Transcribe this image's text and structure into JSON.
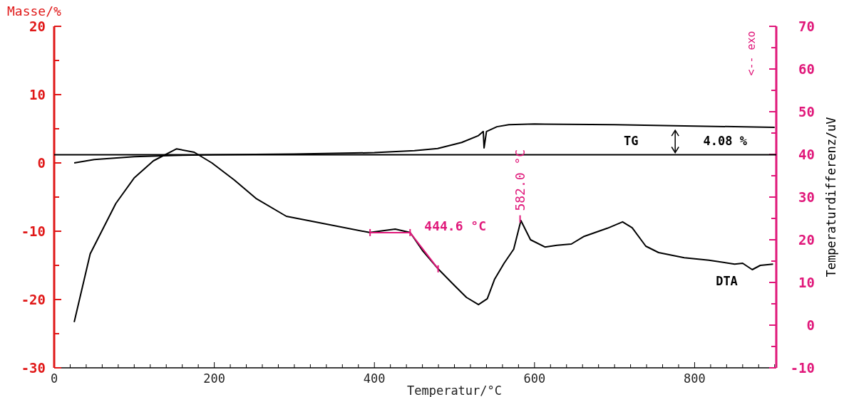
{
  "chart_data": {
    "type": "line",
    "xlabel": "Temperatur/°C",
    "ylabel": "Masse/%",
    "y2label": "Temperaturdifferenz/uV",
    "xlim": [
      0,
      902
    ],
    "ylim": [
      -30,
      20
    ],
    "y2lim": [
      -10,
      70
    ],
    "xticks": [
      0,
      {
        "value": 20,
        "label": null
      },
      {
        "value": 40,
        "label": null
      },
      {
        "value": 60,
        "label": null
      },
      {
        "value": 80,
        "label": null
      },
      {
        "value": 100,
        "label": null
      },
      {
        "value": 120,
        "label": null
      },
      {
        "value": 140,
        "label": null
      },
      {
        "value": 160,
        "label": null
      },
      {
        "value": 180,
        "label": null
      },
      200,
      {
        "value": 220,
        "label": null
      },
      {
        "value": 240,
        "label": null
      },
      {
        "value": 260,
        "label": null
      },
      {
        "value": 280,
        "label": null
      },
      {
        "value": 300,
        "label": null
      },
      {
        "value": 320,
        "label": null
      },
      {
        "value": 340,
        "label": null
      },
      {
        "value": 360,
        "label": null
      },
      {
        "value": 380,
        "label": null
      },
      400,
      {
        "value": 420,
        "label": null
      },
      {
        "value": 440,
        "label": null
      },
      {
        "value": 460,
        "label": null
      },
      {
        "value": 480,
        "label": null
      },
      {
        "value": 500,
        "label": null
      },
      {
        "value": 520,
        "label": null
      },
      {
        "value": 540,
        "label": null
      },
      {
        "value": 560,
        "label": null
      },
      {
        "value": 580,
        "label": null
      },
      600,
      {
        "value": 620,
        "label": null
      },
      {
        "value": 640,
        "label": null
      },
      {
        "value": 660,
        "label": null
      },
      {
        "value": 680,
        "label": null
      },
      {
        "value": 700,
        "label": null
      },
      {
        "value": 720,
        "label": null
      },
      {
        "value": 740,
        "label": null
      },
      {
        "value": 760,
        "label": null
      },
      {
        "value": 780,
        "label": null
      },
      800,
      {
        "value": 820,
        "label": null
      },
      {
        "value": 840,
        "label": null
      },
      {
        "value": 860,
        "label": null
      },
      {
        "value": 880,
        "label": null
      },
      {
        "value": 900,
        "label": null
      }
    ],
    "yticks": [
      -30,
      {
        "value": -25,
        "label": null
      },
      -20,
      {
        "value": -15,
        "label": null
      },
      -10,
      {
        "value": -5,
        "label": null
      },
      0,
      {
        "value": 5,
        "label": null
      },
      10,
      {
        "value": 15,
        "label": null
      },
      20
    ],
    "y2ticks": [
      -10,
      {
        "value": -5,
        "label": null
      },
      0,
      {
        "value": 5,
        "label": null
      },
      10,
      {
        "value": 15,
        "label": null
      },
      20,
      {
        "value": 25,
        "label": null
      },
      30,
      {
        "value": 35,
        "label": null
      },
      40,
      {
        "value": 45,
        "label": null
      },
      50,
      {
        "value": 55,
        "label": null
      },
      60,
      {
        "value": 65,
        "label": null
      },
      70
    ],
    "series": [
      {
        "name": "TG",
        "color": "#000000",
        "x": [
          25,
          50,
          100,
          150,
          200,
          300,
          400,
          450,
          479,
          509,
          530,
          536,
          537,
          540,
          553,
          568,
          600,
          700,
          800,
          900
        ],
        "values": [
          0,
          0.5,
          0.9,
          1.1,
          1.2,
          1.3,
          1.5,
          1.8,
          2.1,
          3.0,
          4.0,
          4.6,
          2.2,
          4.6,
          5.3,
          5.6,
          5.7,
          5.6,
          5.4,
          5.2
        ]
      },
      {
        "name": "DTA",
        "color": "#000000",
        "axis": "y2",
        "x": [
          25,
          45,
          77,
          100,
          124,
          153,
          175,
          197,
          225,
          252,
          290,
          331,
          394,
          426,
          444.6,
          460,
          479,
          500,
          515,
          530,
          541,
          550,
          562,
          574,
          583,
          595,
          613,
          628,
          646,
          662,
          691,
          710,
          722,
          739,
          755,
          787,
          818,
          850,
          860,
          872,
          882,
          898
        ],
        "values": [
          0.7,
          16.7,
          28.5,
          34.5,
          38.5,
          41.3,
          40.5,
          38,
          34,
          29.7,
          25.5,
          24,
          21.7,
          22.5,
          21.7,
          17.5,
          13.3,
          9.3,
          6.5,
          4.8,
          6.2,
          10.7,
          14.5,
          17.8,
          24.5,
          20,
          18.3,
          18.7,
          19,
          20.8,
          22.7,
          24.2,
          22.8,
          18.5,
          17,
          15.8,
          15.2,
          14.3,
          14.5,
          13,
          14,
          14.3
        ]
      }
    ],
    "ref_lines": [
      {
        "axis": "y",
        "value": 1.2,
        "color": "#000000"
      }
    ],
    "annotations": [
      "4.08 %",
      {
        "text": "444.6 °C",
        "x": 444.6,
        "y": -10.2
      },
      "582.0 °C",
      "<-- exo"
    ],
    "grid": false,
    "legend": false
  }
}
